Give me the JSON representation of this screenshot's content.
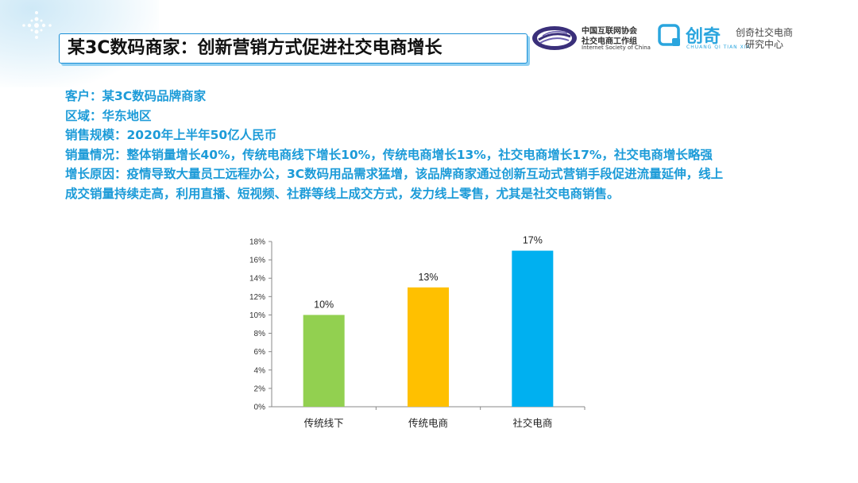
{
  "header": {
    "title": "某3C数码商家：创新营销方式促进社交电商增长",
    "isc_logo": {
      "cn_line1": "中国互联网协会",
      "cn_line2": "社交电商工作组",
      "en": "Internet Society of China"
    },
    "chuangqi_logo": {
      "brand": "创奇",
      "pinyin": "CHUANG QI TIAN XIA",
      "name_line1": "创奇社交电商",
      "name_line2": "研究中心"
    }
  },
  "info": {
    "lines": [
      "客户：某3C数码品牌商家",
      "区域：华东地区",
      "销售规模：2020年上半年50亿人民币",
      "销量情况：整体销量增长40%，传统电商线下增长10%，传统电商增长13%，社交电商增长17%，社交电商增长略强",
      "增长原因：疫情导致大量员工远程办公，3C数码用品需求猛增，该品牌商家通过创新互动式营销手段促进流量延伸，线上",
      "成交销量持续走高，利用直播、短视频、社群等线上成交方式，发力线上零售，尤其是社交电商销售。"
    ]
  },
  "colors": {
    "accent": "#1c9bd8",
    "title_border": "#1a8fd6"
  },
  "chart_data": {
    "type": "bar",
    "title": "",
    "xlabel": "",
    "ylabel": "",
    "categories": [
      "传统线下",
      "传统电商",
      "社交电商"
    ],
    "values": [
      10,
      13,
      17
    ],
    "value_labels": [
      "10%",
      "13%",
      "17%"
    ],
    "colors": [
      "#92d050",
      "#ffc000",
      "#00b0f0"
    ],
    "ylim": [
      0,
      18
    ],
    "y_ticks": [
      0,
      2,
      4,
      6,
      8,
      10,
      12,
      14,
      16,
      18
    ],
    "y_tick_labels": [
      "0%",
      "2%",
      "4%",
      "6%",
      "8%",
      "10%",
      "12%",
      "14%",
      "16%",
      "18%"
    ],
    "grid": false,
    "legend": "none"
  }
}
